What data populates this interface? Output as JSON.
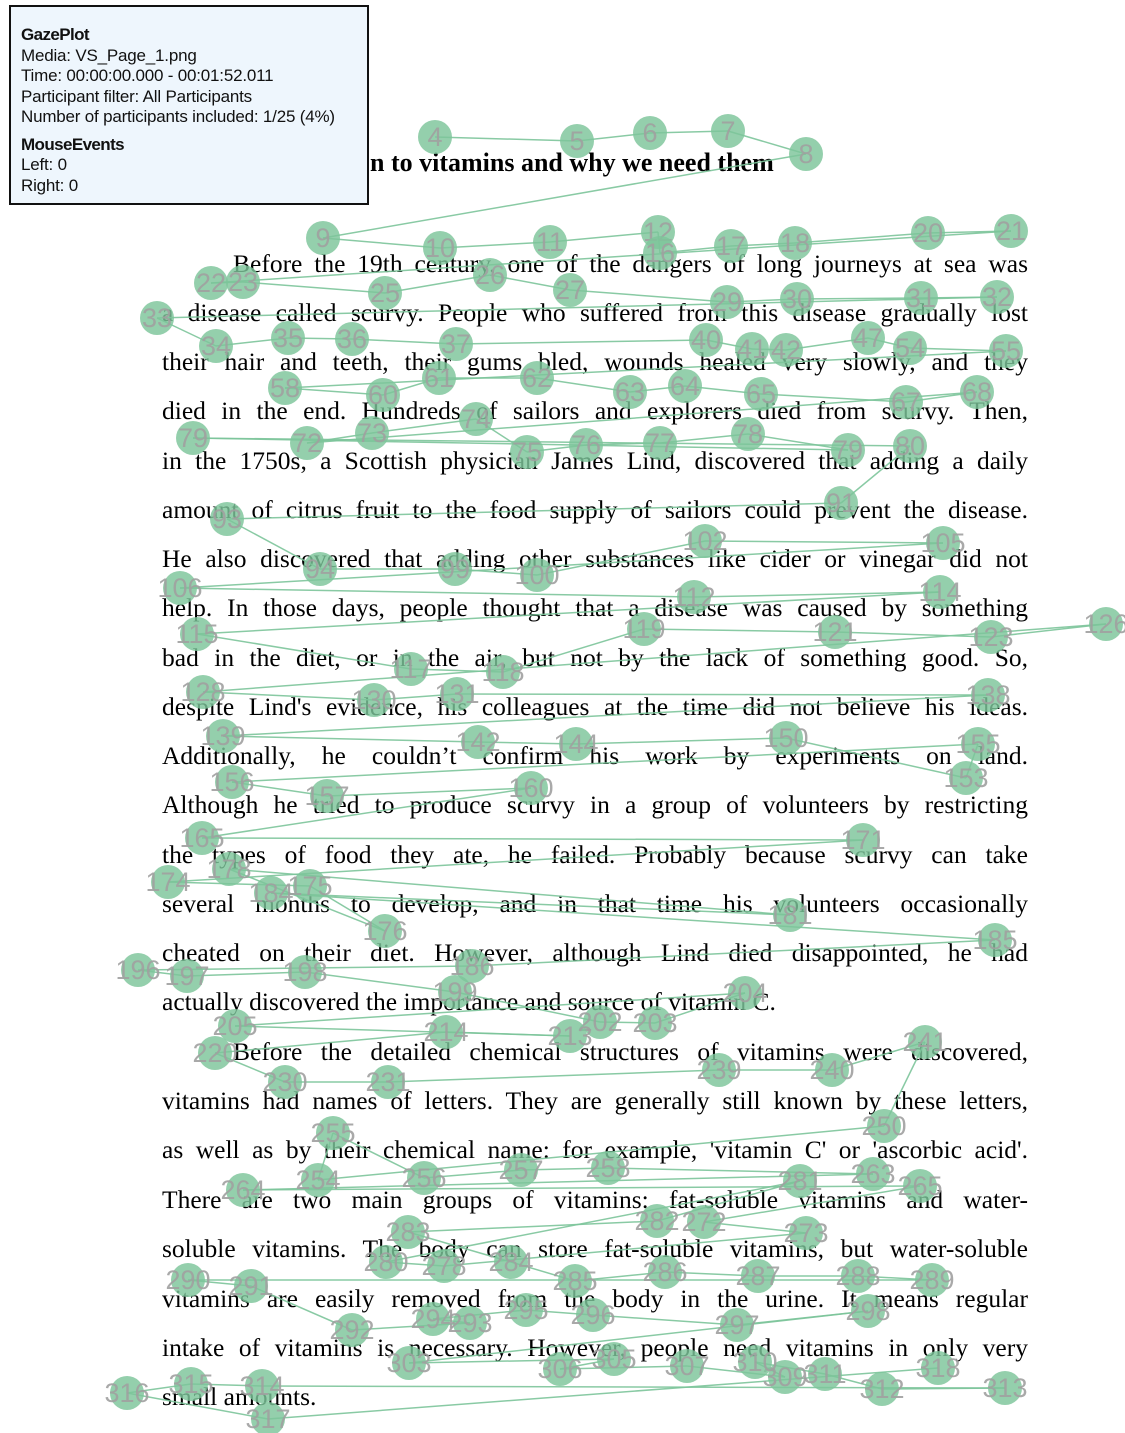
{
  "overlay": {
    "title": "GazePlot",
    "media": "Media: VS_Page_1.png",
    "time": "Time: 00:00:00.000 - 00:01:52.011",
    "participant_filter": "Participant filter: All Participants",
    "participants_included": "Number of participants included: 1/25 (4%)",
    "mouse_events_title": "MouseEvents",
    "left": "Left: 0",
    "right": "Right: 0"
  },
  "document": {
    "heading": "n to vitamins and why we need them",
    "lines": [
      "Before the 19th century, one of the dangers of long journeys at sea was",
      "a disease called scurvy. People who suffered from this disease gradually lost",
      "their hair and teeth, their gums bled, wounds healed very slowly, and they",
      "died in the end. Hundreds of sailors and explorers died from scurvy. Then,",
      "in the 1750s, a Scottish physician James Lind, discovered that adding a daily",
      "amount of citrus fruit to the food supply of sailors could prevent the disease.",
      "He also discovered that adding other substances like cider or vinegar did not",
      "help. In those days, people thought that a disease was caused by something",
      "bad in the diet, or in the air, but not by the lack of something good. So,",
      "despite Lind's evidence, his colleagues at the time did not believe his ideas.",
      "Additionally, he couldn’t confirm his work by experiments on land.",
      "Although he tried to produce scurvy in a group of volunteers by restricting",
      "the types of food they ate, he failed. Probably because scurvy can take",
      "several months to develop, and in that time his volunteers occasionally",
      "cheated on their diet. However, although Lind died disappointed, he had",
      "actually discovered the importance and source of vitamin C.",
      "Before the detailed chemical structures of vitamins were discovered,",
      "vitamins had names of letters. They are generally still known by these letters,",
      "as well as by their chemical name: for example, 'vitamin C' or 'ascorbic acid'.",
      "There are two main groups of vitamins: fat-soluble vitamins and water-",
      "soluble vitamins. The body can store fat-soluble vitamins, but water-soluble",
      "vitamins are easily removed from the body in the urine. It means regular",
      "intake of vitamins is necessary. However, people need vitamins in only very",
      "small amounts."
    ]
  },
  "gaze_plot": {
    "colors": {
      "fixation": "#7cc49a",
      "path": "#7cc49a",
      "label": "#a0a0a0"
    },
    "fixations": [
      [
        "4",
        435,
        137
      ],
      [
        "5",
        577,
        141
      ],
      [
        "6",
        650,
        133
      ],
      [
        "7",
        728,
        131
      ],
      [
        "8",
        806,
        154
      ],
      [
        "9",
        323,
        238
      ],
      [
        "10",
        440,
        248
      ],
      [
        "11",
        550,
        242
      ],
      [
        "12",
        658,
        232
      ],
      [
        "16",
        660,
        253
      ],
      [
        "17",
        731,
        246
      ],
      [
        "18",
        795,
        243
      ],
      [
        "20",
        928,
        233
      ],
      [
        "21",
        1011,
        231
      ],
      [
        "22",
        211,
        283
      ],
      [
        "23",
        243,
        282
      ],
      [
        "25",
        385,
        293
      ],
      [
        "26",
        490,
        275
      ],
      [
        "27",
        570,
        290
      ],
      [
        "29",
        727,
        302
      ],
      [
        "30",
        797,
        299
      ],
      [
        "31",
        921,
        298
      ],
      [
        "32",
        997,
        297
      ],
      [
        "33",
        157,
        318
      ],
      [
        "34",
        216,
        346
      ],
      [
        "35",
        288,
        338
      ],
      [
        "36",
        352,
        339
      ],
      [
        "37",
        456,
        344
      ],
      [
        "40",
        706,
        340
      ],
      [
        "41",
        752,
        349
      ],
      [
        "42",
        786,
        350
      ],
      [
        "47",
        868,
        338
      ],
      [
        "54",
        910,
        348
      ],
      [
        "55",
        1006,
        351
      ],
      [
        "58",
        285,
        388
      ],
      [
        "60",
        383,
        395
      ],
      [
        "61",
        439,
        378
      ],
      [
        "62",
        537,
        378
      ],
      [
        "63",
        630,
        392
      ],
      [
        "64",
        685,
        386
      ],
      [
        "65",
        761,
        394
      ],
      [
        "67",
        906,
        402
      ],
      [
        "68",
        977,
        392
      ],
      [
        "72",
        307,
        443
      ],
      [
        "73",
        372,
        433
      ],
      [
        "74",
        476,
        419
      ],
      [
        "75",
        527,
        452
      ],
      [
        "76",
        586,
        445
      ],
      [
        "77",
        660,
        443
      ],
      [
        "78",
        748,
        434
      ],
      [
        "79",
        848,
        450
      ],
      [
        "80",
        910,
        446
      ],
      [
        "79",
        193,
        438
      ],
      [
        "91",
        841,
        503
      ],
      [
        "93",
        227,
        519
      ],
      [
        "94",
        320,
        569
      ],
      [
        "99",
        455,
        569
      ],
      [
        "100",
        537,
        575
      ],
      [
        "102",
        705,
        541
      ],
      [
        "105",
        943,
        543
      ],
      [
        "106",
        180,
        588
      ],
      [
        "112",
        694,
        597
      ],
      [
        "114",
        940,
        592
      ],
      [
        "115",
        197,
        634
      ],
      [
        "117",
        411,
        669
      ],
      [
        "118",
        503,
        672
      ],
      [
        "119",
        644,
        629
      ],
      [
        "121",
        835,
        632
      ],
      [
        "123",
        991,
        637
      ],
      [
        "126",
        1106,
        624
      ],
      [
        "128",
        203,
        692
      ],
      [
        "130",
        374,
        700
      ],
      [
        "131",
        457,
        694
      ],
      [
        "138",
        988,
        695
      ],
      [
        "139",
        223,
        736
      ],
      [
        "142",
        478,
        742
      ],
      [
        "144",
        576,
        744
      ],
      [
        "150",
        786,
        738
      ],
      [
        "153",
        966,
        778
      ],
      [
        "155",
        978,
        744
      ],
      [
        "156",
        232,
        782
      ],
      [
        "157",
        327,
        796
      ],
      [
        "160",
        531,
        788
      ],
      [
        "165",
        202,
        838
      ],
      [
        "171",
        863,
        840
      ],
      [
        "174",
        168,
        882
      ],
      [
        "175",
        310,
        886
      ],
      [
        "176",
        385,
        931
      ],
      [
        "178",
        229,
        869
      ],
      [
        "181",
        790,
        915
      ],
      [
        "184",
        271,
        893
      ],
      [
        "185",
        995,
        940
      ],
      [
        "186",
        472,
        966
      ],
      [
        "196",
        138,
        970
      ],
      [
        "197",
        187,
        976
      ],
      [
        "198",
        305,
        972
      ],
      [
        "199",
        455,
        992
      ],
      [
        "202",
        600,
        1022
      ],
      [
        "203",
        655,
        1023
      ],
      [
        "204",
        745,
        993
      ],
      [
        "205",
        235,
        1026
      ],
      [
        "213",
        570,
        1036
      ],
      [
        "214",
        446,
        1032
      ],
      [
        "220",
        215,
        1053
      ],
      [
        "230",
        285,
        1082
      ],
      [
        "231",
        388,
        1082
      ],
      [
        "239",
        719,
        1070
      ],
      [
        "240",
        832,
        1070
      ],
      [
        "241",
        925,
        1042
      ],
      [
        "250",
        884,
        1126
      ],
      [
        "254",
        318,
        1180
      ],
      [
        "255",
        333,
        1133
      ],
      [
        "256",
        424,
        1178
      ],
      [
        "257",
        521,
        1170
      ],
      [
        "258",
        608,
        1168
      ],
      [
        "263",
        873,
        1174
      ],
      [
        "264",
        243,
        1190
      ],
      [
        "265",
        920,
        1186
      ],
      [
        "272",
        704,
        1222
      ],
      [
        "273",
        806,
        1233
      ],
      [
        "278",
        444,
        1266
      ],
      [
        "280",
        386,
        1262
      ],
      [
        "281",
        800,
        1181
      ],
      [
        "282",
        657,
        1221
      ],
      [
        "283",
        408,
        1232
      ],
      [
        "284",
        511,
        1262
      ],
      [
        "285",
        575,
        1281
      ],
      [
        "286",
        665,
        1272
      ],
      [
        "287",
        758,
        1276
      ],
      [
        "288",
        858,
        1276
      ],
      [
        "289",
        932,
        1280
      ],
      [
        "290",
        188,
        1280
      ],
      [
        "291",
        251,
        1286
      ],
      [
        "292",
        352,
        1330
      ],
      [
        "293",
        470,
        1323
      ],
      [
        "294",
        433,
        1319
      ],
      [
        "295",
        526,
        1310
      ],
      [
        "296",
        593,
        1315
      ],
      [
        "297",
        737,
        1325
      ],
      [
        "298",
        868,
        1311
      ],
      [
        "303",
        409,
        1363
      ],
      [
        "305",
        614,
        1359
      ],
      [
        "306",
        560,
        1369
      ],
      [
        "307",
        687,
        1366
      ],
      [
        "309",
        785,
        1377
      ],
      [
        "310",
        755,
        1362
      ],
      [
        "311",
        825,
        1374
      ],
      [
        "312",
        882,
        1389
      ],
      [
        "313",
        1005,
        1388
      ],
      [
        "314",
        262,
        1386
      ],
      [
        "315",
        191,
        1384
      ],
      [
        "316",
        127,
        1393
      ],
      [
        "317",
        268,
        1419
      ],
      [
        "318",
        938,
        1368
      ]
    ]
  }
}
